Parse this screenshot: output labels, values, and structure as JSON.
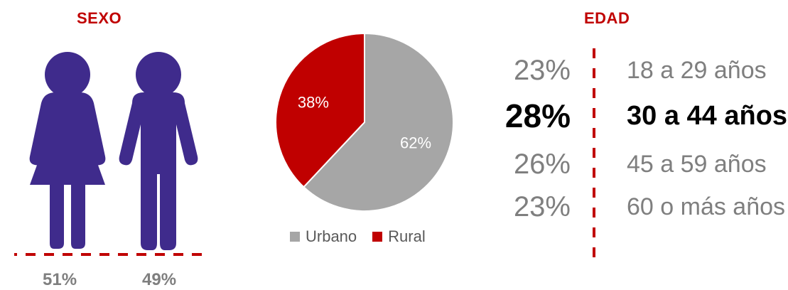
{
  "sexo": {
    "title": "SEXO",
    "women_pct": "51%",
    "men_pct": "49%",
    "figure_color": "#3f2b8c",
    "divider_color": "#c00000"
  },
  "chart_data": {
    "type": "pie",
    "slices": [
      {
        "name": "Urbano",
        "value": 62,
        "label": "62%",
        "color": "#a6a6a6"
      },
      {
        "name": "Rural",
        "value": 38,
        "label": "38%",
        "color": "#c00000"
      }
    ],
    "legend": [
      "Urbano",
      "Rural"
    ],
    "legend_position": "bottom"
  },
  "edad": {
    "title": "EDAD",
    "rows": [
      {
        "pct": "23%",
        "label": "18 a 29 años"
      },
      {
        "pct": "28%",
        "label": "30 a 44 años"
      },
      {
        "pct": "26%",
        "label": "45 a 59 años"
      },
      {
        "pct": "23%",
        "label": "60 o más años"
      }
    ],
    "highlight_index": 1
  }
}
